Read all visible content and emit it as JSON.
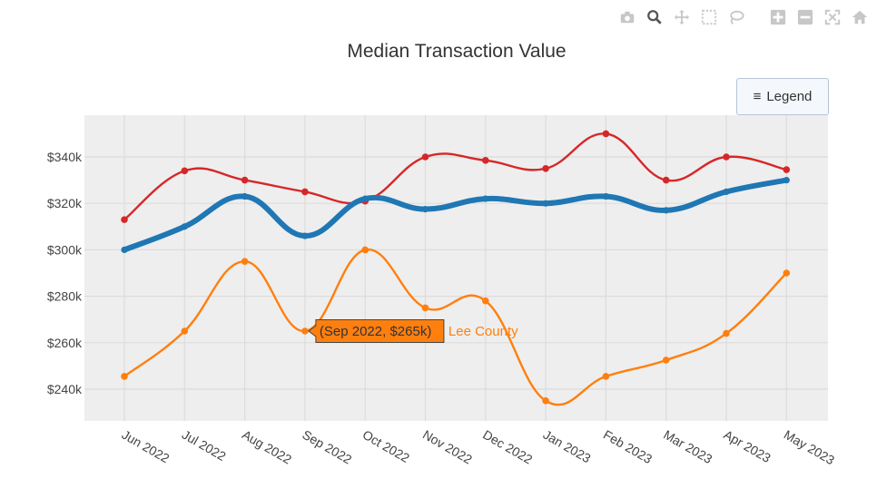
{
  "modebar": {
    "icons": [
      "camera-icon",
      "zoom-icon",
      "pan-icon",
      "box-select-icon",
      "lasso-icon",
      "zoom-in-icon",
      "zoom-out-icon",
      "autoscale-icon",
      "home-icon"
    ]
  },
  "legend_button": {
    "icon": "hamburger-icon",
    "label": "Legend"
  },
  "tooltip": {
    "text": "(Sep 2022, $265k)",
    "series_name": "Lee County",
    "category_index": 3
  },
  "chart_data": {
    "type": "line",
    "title": "Median Transaction Value",
    "xlabel": "",
    "ylabel": "",
    "categories": [
      "Jun 2022",
      "Jul 2022",
      "Aug 2022",
      "Sep 2022",
      "Oct 2022",
      "Nov 2022",
      "Dec 2022",
      "Jan 2023",
      "Feb 2023",
      "Mar 2023",
      "Apr 2023",
      "May 2023"
    ],
    "ylim": [
      225000,
      357000
    ],
    "yticks": [
      240000,
      260000,
      280000,
      300000,
      320000,
      340000
    ],
    "ytick_labels": [
      "$240k",
      "$260k",
      "$280k",
      "$300k",
      "$320k",
      "$340k"
    ],
    "grid": true,
    "series": [
      {
        "values": [
          313000,
          334000,
          330000,
          325000,
          321000,
          340000,
          338500,
          335000,
          350000,
          330000,
          340000,
          334500
        ],
        "color": "#d62728",
        "width": "thin"
      },
      {
        "values": [
          300000,
          310000,
          323000,
          306000,
          322000,
          317500,
          322000,
          320000,
          323000,
          317000,
          325000,
          330000
        ],
        "color": "#1f77b4",
        "width": "thick"
      },
      {
        "name": "Lee County",
        "values": [
          245500,
          265000,
          295000,
          265000,
          300000,
          275000,
          278000,
          235000,
          245500,
          252500,
          264000,
          290000
        ],
        "color": "#ff7f0e",
        "width": "thin"
      }
    ]
  }
}
